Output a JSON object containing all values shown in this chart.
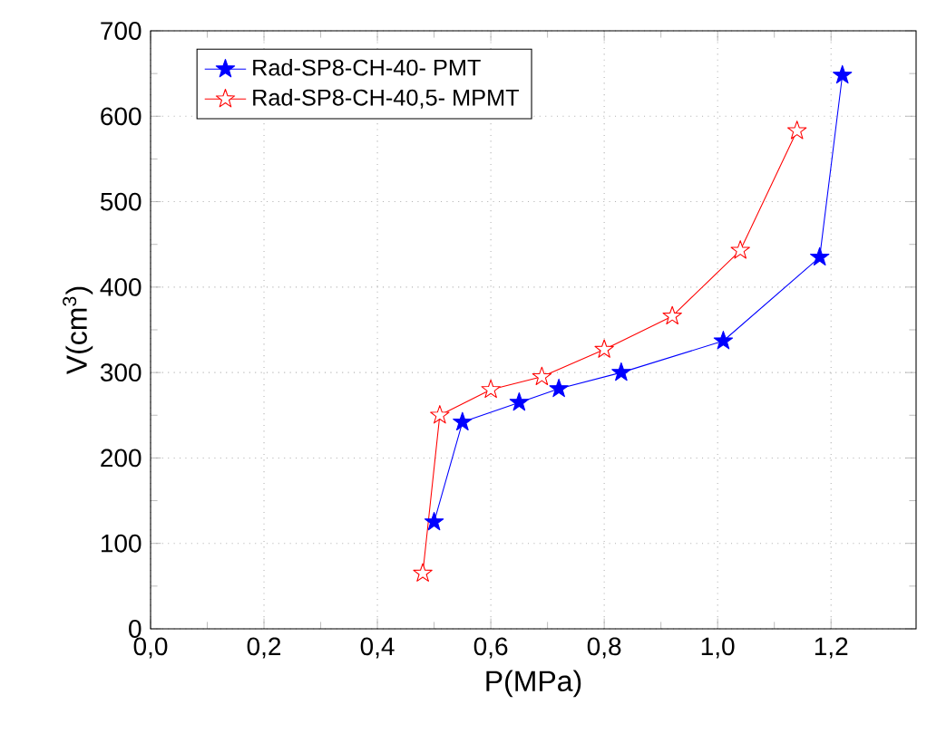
{
  "chart_data": {
    "type": "line",
    "xlabel": "P(MPa)",
    "ylabel": "V(cm$^{3}$)",
    "xlim": [
      0,
      1.35
    ],
    "ylim": [
      0,
      700
    ],
    "xticks": [
      {
        "value": 0,
        "label": "0,0"
      },
      {
        "value": 0.2,
        "label": "0,2"
      },
      {
        "value": 0.4,
        "label": "0,4"
      },
      {
        "value": 0.6,
        "label": "0,6"
      },
      {
        "value": 0.8,
        "label": "0,8"
      },
      {
        "value": 1.0,
        "label": "1,0"
      },
      {
        "value": 1.2,
        "label": "1,2"
      }
    ],
    "yticks": [
      0,
      100,
      200,
      300,
      400,
      500,
      600,
      700
    ],
    "grid": true,
    "legend": "top left",
    "marker": "star",
    "line_style": "solid",
    "series": [
      {
        "name": "Rad-SP8-CH-40- PMT",
        "color": "#0000ff",
        "x": [
          0.5,
          0.55,
          0.65,
          0.72,
          0.83,
          1.01,
          1.18,
          1.22
        ],
        "values": [
          125,
          242,
          265,
          281,
          300,
          337,
          435,
          648
        ]
      },
      {
        "name": "Rad-SP8-CH-40,5- MPMT",
        "color": "#ff0000",
        "x": [
          0.48,
          0.51,
          0.6,
          0.69,
          0.8,
          0.92,
          1.04,
          1.14
        ],
        "values": [
          65,
          250,
          280,
          295,
          327,
          366,
          443,
          583
        ]
      }
    ]
  }
}
